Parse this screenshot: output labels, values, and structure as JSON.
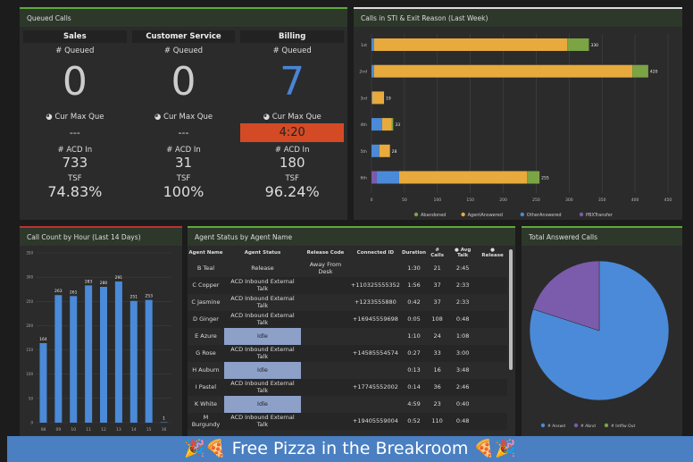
{
  "queued": {
    "title": "Queued Calls",
    "queues": [
      {
        "name": "Sales",
        "queued_label": "# Queued",
        "queued": "0",
        "max_label": "Cur Max Que",
        "max": "---",
        "acd_label": "# ACD In",
        "acd": "733",
        "tsf_label": "TSF",
        "tsf": "74.83%"
      },
      {
        "name": "Customer Service",
        "queued_label": "# Queued",
        "queued": "0",
        "max_label": "Cur Max Que",
        "max": "---",
        "acd_label": "# ACD In",
        "acd": "31",
        "tsf_label": "TSF",
        "tsf": "100%"
      },
      {
        "name": "Billing",
        "queued_label": "# Queued",
        "queued": "7",
        "max_label": "Cur Max Que",
        "max": "4:20",
        "acd_label": "# ACD In",
        "acd": "180",
        "tsf_label": "TSF",
        "tsf": "96.24%"
      }
    ]
  },
  "sti": {
    "title": "Calls in STI & Exit Reason (Last Week)"
  },
  "callcount": {
    "title": "Call Count by Hour (Last 14 Days)"
  },
  "agents": {
    "title": "Agent Status by Agent Name",
    "columns": [
      "Agent Name",
      "Agent Status",
      "Release Code",
      "Connected ID",
      "Duration",
      "# Calls",
      "Avg Talk",
      "Release"
    ],
    "rows": [
      [
        "B Teal",
        "Release",
        "Away From Desk",
        "",
        "1:30",
        "21",
        "2:45"
      ],
      [
        "C Copper",
        "ACD Inbound External Talk",
        "",
        "+110325555352",
        "1:56",
        "37",
        "2:33"
      ],
      [
        "C Jasmine",
        "ACD Inbound External Talk",
        "",
        "+1233555880",
        "0:42",
        "37",
        "2:33"
      ],
      [
        "D Ginger",
        "ACD Inbound External Talk",
        "",
        "+16945559698",
        "0:05",
        "108",
        "0:48"
      ],
      [
        "E Azure",
        "Idle",
        "",
        "",
        "1:10",
        "24",
        "1:08"
      ],
      [
        "G Rose",
        "ACD Inbound External Talk",
        "",
        "+14585554574",
        "0:27",
        "33",
        "3:00"
      ],
      [
        "H Auburn",
        "Idle",
        "",
        "",
        "0:13",
        "16",
        "3:48"
      ],
      [
        "I Pastel",
        "ACD Inbound External Talk",
        "",
        "+17745552002",
        "0:14",
        "36",
        "2:46"
      ],
      [
        "K White",
        "Idle",
        "",
        "",
        "4:59",
        "23",
        "0:40"
      ],
      [
        "M Burgundy",
        "ACD Inbound External Talk",
        "",
        "+19405559004",
        "0:52",
        "110",
        "0:48"
      ]
    ]
  },
  "answered": {
    "title": "Total Answered Calls"
  },
  "banner": {
    "text": "🎉🍕 Free Pizza in the Breakroom 🍕🎉"
  },
  "colors": {
    "abandoned": "#7ba445",
    "agent": "#e8aa3c",
    "other": "#4a8ad8",
    "pbx": "#7b5bab",
    "bar": "#4a8ad8",
    "idle": "#8da0c8",
    "alert": "#d44a25"
  },
  "chart_data": [
    {
      "type": "bar",
      "orientation": "horizontal",
      "stacked": true,
      "categories": [
        "1st",
        "2nd",
        "3rd",
        "4th",
        "5th",
        "6th"
      ],
      "series": [
        {
          "name": "PBXTransfer",
          "values": [
            0,
            0,
            0,
            0,
            0,
            8
          ]
        },
        {
          "name": "OtherAnswered",
          "values": [
            4,
            4,
            1,
            16,
            12,
            34
          ]
        },
        {
          "name": "AgentAnswered",
          "values": [
            293,
            392,
            18,
            15,
            16,
            194
          ]
        },
        {
          "name": "Abandoned",
          "values": [
            33,
            24,
            0,
            2,
            0,
            19
          ]
        }
      ],
      "totals": [
        "330",
        "420",
        "19",
        "33",
        "28",
        "255"
      ],
      "xlim": [
        0,
        450
      ],
      "xticks": [
        0,
        50,
        100,
        150,
        200,
        250,
        300,
        350,
        400,
        450
      ],
      "legend": "bottom",
      "legend_order": [
        "Abandoned",
        "AgentAnswered",
        "OtherAnswered",
        "PBXTransfer"
      ],
      "grid": true
    },
    {
      "type": "bar",
      "categories": [
        "08",
        "09",
        "10",
        "11",
        "12",
        "13",
        "14",
        "15",
        "16"
      ],
      "values": [
        164,
        263,
        261,
        283,
        280,
        291,
        251,
        253,
        1
      ],
      "ylim": [
        0,
        350
      ],
      "yticks": [
        0,
        50,
        100,
        150,
        200,
        250,
        300,
        350
      ],
      "grid": true
    },
    {
      "type": "pie",
      "labels": [
        "# Answd",
        "# Abnd",
        "# Intflw Out"
      ],
      "values": [
        80,
        20,
        0
      ],
      "legend": "bottom"
    }
  ]
}
